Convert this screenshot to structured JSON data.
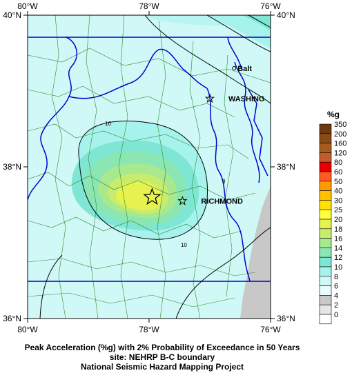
{
  "map": {
    "lon_labels": [
      "80°W",
      "78°W",
      "76°W"
    ],
    "lat_labels": [
      "40°N",
      "38°N",
      "36°N"
    ],
    "lon_range": [
      -80,
      -76
    ],
    "lat_range": [
      36,
      40
    ],
    "cities": [
      {
        "name": "Balt",
        "lon": -76.6,
        "lat": 39.3
      },
      {
        "name": "WASHING",
        "lon": -77.0,
        "lat": 38.9
      },
      {
        "name": "RICHMOND",
        "lon": -77.45,
        "lat": 37.55
      }
    ],
    "epicenter": {
      "lon": -77.95,
      "lat": 37.6
    },
    "contour_labels": [
      "10",
      "10",
      "8"
    ]
  },
  "legend": {
    "title": "%g",
    "levels": [
      {
        "label": "350",
        "color": "#6b3a10"
      },
      {
        "label": "200",
        "color": "#8a4a14"
      },
      {
        "label": "160",
        "color": "#a85c1c"
      },
      {
        "label": "120",
        "color": "#c25a2a"
      },
      {
        "label": "80",
        "color": "#e60000"
      },
      {
        "label": "60",
        "color": "#ff5a1e"
      },
      {
        "label": "50",
        "color": "#ff9a00"
      },
      {
        "label": "40",
        "color": "#ffc000"
      },
      {
        "label": "30",
        "color": "#ffe200"
      },
      {
        "label": "25",
        "color": "#ffff3c"
      },
      {
        "label": "20",
        "color": "#e6f250"
      },
      {
        "label": "18",
        "color": "#c8ec6e"
      },
      {
        "label": "16",
        "color": "#a8e88e"
      },
      {
        "label": "14",
        "color": "#8ce6b4"
      },
      {
        "label": "12",
        "color": "#7ee6d2"
      },
      {
        "label": "10",
        "color": "#a6f2ec"
      },
      {
        "label": "8",
        "color": "#cff8f6"
      },
      {
        "label": "6",
        "color": "#e8fcfc"
      },
      {
        "label": "4",
        "color": "#c8c8c8"
      },
      {
        "label": "2",
        "color": "#e6e6e6"
      },
      {
        "label": "0",
        "color": "#ffffff"
      }
    ]
  },
  "caption": {
    "line1": "Peak Acceleration (%g) with 2% Probability of Exceedance in 50 Years",
    "line2": "site: NEHRP B-C boundary",
    "line3": "National Seismic Hazard Mapping Project"
  }
}
